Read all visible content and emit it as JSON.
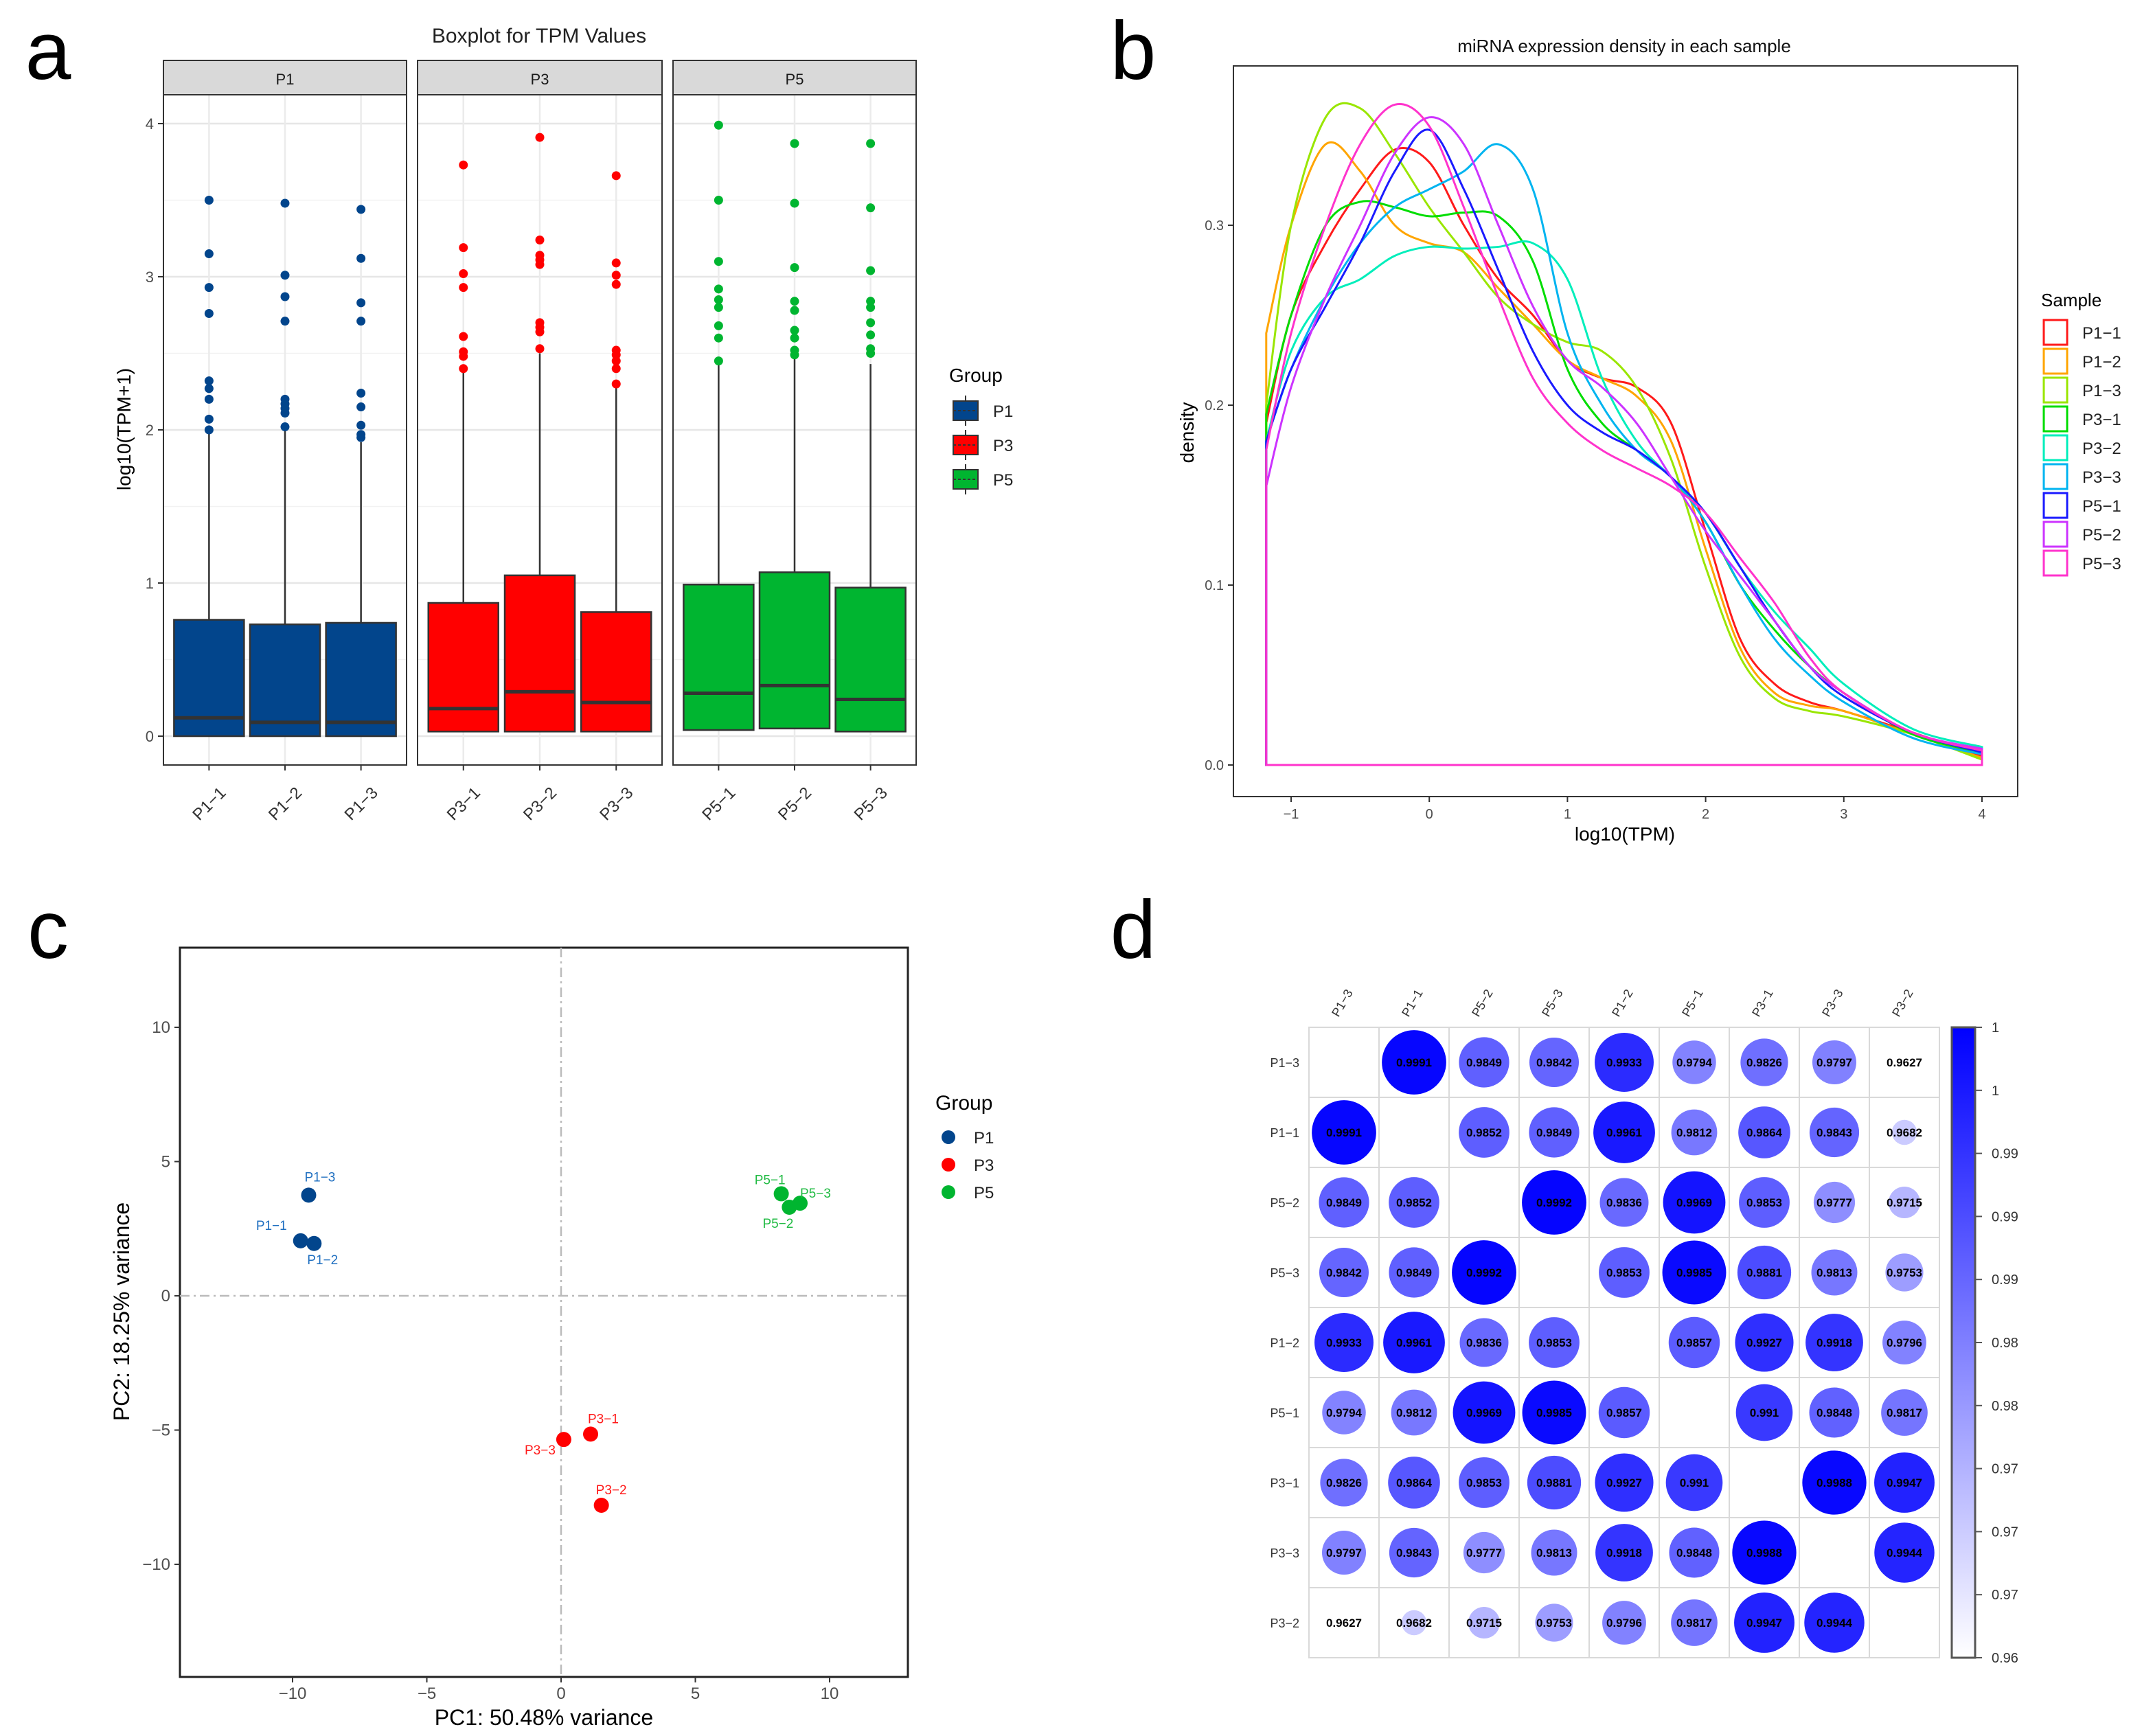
{
  "panel_letters": [
    "a",
    "b",
    "c",
    "d"
  ],
  "colors": {
    "P1": "#02458c",
    "P3": "#ff0000",
    "P5": "#00b530",
    "P1_label": "#1f6fc0",
    "P3_label": "#ff1a1a",
    "P5_label": "#22bb44",
    "heat_high": "#0000ff",
    "heat_low": "#ffffff"
  },
  "chart_data": [
    {
      "type": "box",
      "title": "Boxplot for TPM Values",
      "ylabel": "log10(TPM+1)",
      "xlabel": "",
      "ylim": [
        -0.2,
        4.2
      ],
      "yticks": [
        0,
        1,
        2,
        3,
        4
      ],
      "facets": [
        "P1",
        "P3",
        "P5"
      ],
      "legend_title": "Group",
      "legend_entries": [
        "P1",
        "P3",
        "P5"
      ],
      "legend_position": "right",
      "samples": [
        {
          "name": "P1−1",
          "group": "P1",
          "q1": 0.0,
          "median": 0.12,
          "q3": 0.76,
          "whisker_low": 0.0,
          "whisker_high": 1.98,
          "outliers": [
            3.5,
            3.15,
            2.93,
            2.76,
            2.32,
            2.27,
            2.2,
            2.07,
            2.0
          ]
        },
        {
          "name": "P1−2",
          "group": "P1",
          "q1": 0.0,
          "median": 0.09,
          "q3": 0.73,
          "whisker_low": 0.0,
          "whisker_high": 2.0,
          "outliers": [
            3.48,
            3.01,
            2.87,
            2.71,
            2.2,
            2.17,
            2.14,
            2.11,
            2.02
          ]
        },
        {
          "name": "P1−3",
          "group": "P1",
          "q1": 0.0,
          "median": 0.09,
          "q3": 0.74,
          "whisker_low": 0.0,
          "whisker_high": 1.92,
          "outliers": [
            3.44,
            3.12,
            2.83,
            2.71,
            2.24,
            2.15,
            2.03,
            1.97,
            1.95
          ]
        },
        {
          "name": "P3−1",
          "group": "P3",
          "q1": 0.03,
          "median": 0.18,
          "q3": 0.87,
          "whisker_low": 0.0,
          "whisker_high": 2.38,
          "outliers": [
            3.73,
            3.19,
            3.02,
            2.93,
            2.61,
            2.51,
            2.48,
            2.4
          ]
        },
        {
          "name": "P3−2",
          "group": "P3",
          "q1": 0.03,
          "median": 0.29,
          "q3": 1.05,
          "whisker_low": 0.0,
          "whisker_high": 2.5,
          "outliers": [
            3.91,
            3.24,
            3.14,
            3.11,
            3.08,
            2.7,
            2.67,
            2.64,
            2.53
          ]
        },
        {
          "name": "P3−3",
          "group": "P3",
          "q1": 0.03,
          "median": 0.22,
          "q3": 0.81,
          "whisker_low": 0.0,
          "whisker_high": 2.28,
          "outliers": [
            3.66,
            3.09,
            3.01,
            2.95,
            2.52,
            2.49,
            2.45,
            2.4,
            2.3
          ]
        },
        {
          "name": "P5−1",
          "group": "P5",
          "q1": 0.04,
          "median": 0.28,
          "q3": 0.99,
          "whisker_low": 0.0,
          "whisker_high": 2.43,
          "outliers": [
            3.99,
            3.5,
            3.1,
            2.92,
            2.85,
            2.8,
            2.68,
            2.6,
            2.45
          ]
        },
        {
          "name": "P5−2",
          "group": "P5",
          "q1": 0.05,
          "median": 0.33,
          "q3": 1.07,
          "whisker_low": 0.0,
          "whisker_high": 2.48,
          "outliers": [
            3.87,
            3.48,
            3.06,
            2.84,
            2.78,
            2.65,
            2.6,
            2.52,
            2.49
          ]
        },
        {
          "name": "P5−3",
          "group": "P5",
          "q1": 0.03,
          "median": 0.24,
          "q3": 0.97,
          "whisker_low": 0.0,
          "whisker_high": 2.43,
          "outliers": [
            3.87,
            3.45,
            3.04,
            2.84,
            2.8,
            2.7,
            2.62,
            2.53,
            2.5
          ]
        }
      ]
    },
    {
      "type": "line",
      "title": "miRNA expression density in each sample",
      "xlabel": "log10(TPM)",
      "ylabel": "density",
      "xlim": [
        -1.4,
        4.25
      ],
      "ylim": [
        -0.017,
        0.39
      ],
      "xticks": [
        -1,
        0,
        1,
        2,
        3,
        4
      ],
      "xtick_labels": [
        "−1",
        "0",
        "1",
        "2",
        "3",
        "4"
      ],
      "yticks": [
        0,
        0.1,
        0.2,
        0.3
      ],
      "ytick_labels": [
        "0.0",
        "0.1",
        "0.2",
        "0.3"
      ],
      "legend_title": "Sample",
      "legend_position": "right",
      "x": [
        -1.18,
        -1,
        -0.75,
        -0.5,
        -0.25,
        0,
        0.25,
        0.5,
        0.75,
        1,
        1.25,
        1.5,
        1.75,
        2,
        2.25,
        2.5,
        2.75,
        3,
        3.5,
        4
      ],
      "series": [
        {
          "name": "P1−1",
          "color": "#ff1a1a",
          "values": [
            0.19,
            0.25,
            0.29,
            0.32,
            0.342,
            0.335,
            0.3,
            0.27,
            0.25,
            0.225,
            0.215,
            0.21,
            0.19,
            0.13,
            0.07,
            0.045,
            0.035,
            0.03,
            0.018,
            0.005
          ]
        },
        {
          "name": "P1−2",
          "color": "#ffa500",
          "values": [
            0.24,
            0.3,
            0.345,
            0.33,
            0.3,
            0.29,
            0.285,
            0.265,
            0.245,
            0.225,
            0.215,
            0.205,
            0.18,
            0.12,
            0.065,
            0.04,
            0.033,
            0.03,
            0.017,
            0.004
          ]
        },
        {
          "name": "P1−3",
          "color": "#99e600",
          "values": [
            0.2,
            0.3,
            0.36,
            0.365,
            0.34,
            0.31,
            0.285,
            0.26,
            0.245,
            0.235,
            0.23,
            0.21,
            0.17,
            0.11,
            0.06,
            0.037,
            0.03,
            0.027,
            0.017,
            0.003
          ]
        },
        {
          "name": "P3−1",
          "color": "#00dd00",
          "values": [
            0.195,
            0.25,
            0.3,
            0.313,
            0.31,
            0.305,
            0.307,
            0.305,
            0.28,
            0.22,
            0.19,
            0.175,
            0.16,
            0.135,
            0.1,
            0.075,
            0.055,
            0.04,
            0.017,
            0.007
          ]
        },
        {
          "name": "P3−2",
          "color": "#00eebb",
          "values": [
            0.18,
            0.23,
            0.26,
            0.27,
            0.283,
            0.288,
            0.287,
            0.288,
            0.29,
            0.27,
            0.215,
            0.18,
            0.16,
            0.14,
            0.11,
            0.085,
            0.065,
            0.045,
            0.02,
            0.01
          ]
        },
        {
          "name": "P3−3",
          "color": "#00b4f0",
          "values": [
            0.18,
            0.22,
            0.26,
            0.29,
            0.31,
            0.32,
            0.33,
            0.345,
            0.32,
            0.24,
            0.2,
            0.175,
            0.16,
            0.135,
            0.1,
            0.07,
            0.05,
            0.035,
            0.015,
            0.006
          ]
        },
        {
          "name": "P5−1",
          "color": "#1a1aff",
          "values": [
            0.18,
            0.22,
            0.255,
            0.29,
            0.33,
            0.353,
            0.32,
            0.275,
            0.23,
            0.2,
            0.185,
            0.175,
            0.16,
            0.14,
            0.11,
            0.08,
            0.055,
            0.038,
            0.018,
            0.007
          ]
        },
        {
          "name": "P5−2",
          "color": "#cc33ff",
          "values": [
            0.155,
            0.21,
            0.26,
            0.3,
            0.34,
            0.36,
            0.345,
            0.3,
            0.255,
            0.225,
            0.21,
            0.19,
            0.16,
            0.13,
            0.105,
            0.08,
            0.055,
            0.04,
            0.018,
            0.009
          ]
        },
        {
          "name": "P5−3",
          "color": "#ff33cc",
          "values": [
            0.175,
            0.24,
            0.3,
            0.345,
            0.367,
            0.355,
            0.31,
            0.26,
            0.215,
            0.19,
            0.175,
            0.165,
            0.155,
            0.14,
            0.115,
            0.09,
            0.06,
            0.04,
            0.018,
            0.008
          ]
        }
      ]
    },
    {
      "type": "scatter",
      "title": "",
      "xlabel": "PC1: 50.48% variance",
      "ylabel": "PC2: 18.25% variance",
      "xlim": [
        -14.2,
        12.9
      ],
      "ylim": [
        -14.0,
        13.2
      ],
      "xticks": [
        -10,
        -5,
        0,
        5,
        10
      ],
      "xtick_labels": [
        "−10",
        "−5",
        "0",
        "5",
        "10"
      ],
      "yticks": [
        -10,
        -5,
        0,
        5,
        10
      ],
      "ytick_labels": [
        "−10",
        "−5",
        "0",
        "5",
        "10"
      ],
      "legend_title": "Group",
      "legend_entries": [
        "P1",
        "P3",
        "P5"
      ],
      "legend_position": "right",
      "points": [
        {
          "label": "P1−1",
          "group": "P1",
          "x": -9.7,
          "y": 2.05
        },
        {
          "label": "P1−2",
          "group": "P1",
          "x": -9.2,
          "y": 1.95
        },
        {
          "label": "P1−3",
          "group": "P1",
          "x": -9.4,
          "y": 3.75
        },
        {
          "label": "P3−1",
          "group": "P3",
          "x": 1.1,
          "y": -5.15
        },
        {
          "label": "P3−2",
          "group": "P3",
          "x": 1.5,
          "y": -7.8
        },
        {
          "label": "P3−3",
          "group": "P3",
          "x": 0.1,
          "y": -5.35
        },
        {
          "label": "P5−1",
          "group": "P5",
          "x": 8.2,
          "y": 3.8
        },
        {
          "label": "P5−2",
          "group": "P5",
          "x": 8.5,
          "y": 3.3
        },
        {
          "label": "P5−3",
          "group": "P5",
          "x": 8.9,
          "y": 3.45
        }
      ]
    },
    {
      "type": "heatmap",
      "title": "",
      "labels": [
        "P1−3",
        "P1−1",
        "P5−2",
        "P5−3",
        "P1−2",
        "P5−1",
        "P3−1",
        "P3−3",
        "P3−2"
      ],
      "matrix": [
        [
          null,
          "0.9991",
          "0.9849",
          "0.9842",
          "0.9933",
          "0.9794",
          "0.9826",
          "0.9797",
          "0.9627"
        ],
        [
          "0.9991",
          null,
          "0.9852",
          "0.9849",
          "0.9961",
          "0.9812",
          "0.9864",
          "0.9843",
          "0.9682"
        ],
        [
          "0.9849",
          "0.9852",
          null,
          "0.9992",
          "0.9836",
          "0.9969",
          "0.9853",
          "0.9777",
          "0.9715"
        ],
        [
          "0.9842",
          "0.9849",
          "0.9992",
          null,
          "0.9853",
          "0.9985",
          "0.9881",
          "0.9813",
          "0.9753"
        ],
        [
          "0.9933",
          "0.9961",
          "0.9836",
          "0.9853",
          null,
          "0.9857",
          "0.9927",
          "0.9918",
          "0.9796"
        ],
        [
          "0.9794",
          "0.9812",
          "0.9969",
          "0.9985",
          "0.9857",
          null,
          "0.991",
          "0.9848",
          "0.9817"
        ],
        [
          "0.9826",
          "0.9864",
          "0.9853",
          "0.9881",
          "0.9927",
          "0.991",
          null,
          "0.9988",
          "0.9947"
        ],
        [
          "0.9797",
          "0.9843",
          "0.9777",
          "0.9813",
          "0.9918",
          "0.9848",
          "0.9988",
          null,
          "0.9944"
        ],
        [
          "0.9627",
          "0.9682",
          "0.9715",
          "0.9753",
          "0.9796",
          "0.9817",
          "0.9947",
          "0.9944",
          null
        ]
      ],
      "color_range": [
        0.96,
        1.0
      ],
      "colorbar_labels": [
        "1",
        "1",
        "0.99",
        "0.99",
        "0.99",
        "0.98",
        "0.98",
        "0.97",
        "0.97",
        "0.97",
        "0.96"
      ]
    }
  ]
}
